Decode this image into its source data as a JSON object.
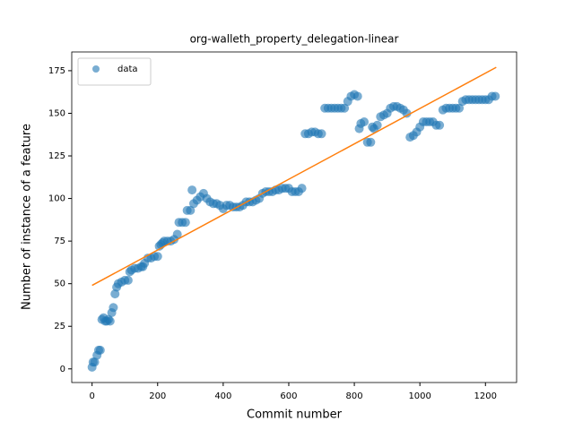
{
  "chart_data": {
    "type": "scatter",
    "title": "org-walleth_property_delegation-linear",
    "xlabel": "Commit number",
    "ylabel": "Number of instance of a feature",
    "xlim": [
      -62,
      1295
    ],
    "ylim": [
      -8,
      186
    ],
    "xticks": [
      0,
      200,
      400,
      600,
      800,
      1000,
      1200
    ],
    "yticks": [
      0,
      25,
      50,
      75,
      100,
      125,
      150,
      175
    ],
    "legend": "upper left",
    "series": [
      {
        "name": "data",
        "color": "#1f77b4",
        "kind": "points",
        "x": [
          0,
          3,
          8,
          15,
          20,
          25,
          30,
          35,
          40,
          45,
          50,
          55,
          60,
          65,
          70,
          75,
          80,
          90,
          100,
          110,
          115,
          120,
          130,
          140,
          150,
          155,
          160,
          170,
          180,
          190,
          200,
          205,
          210,
          215,
          220,
          230,
          240,
          250,
          260,
          265,
          275,
          285,
          290,
          300,
          305,
          310,
          320,
          330,
          340,
          350,
          360,
          370,
          380,
          390,
          400,
          410,
          420,
          430,
          440,
          450,
          460,
          470,
          480,
          490,
          500,
          510,
          520,
          530,
          540,
          550,
          560,
          570,
          580,
          590,
          600,
          610,
          620,
          630,
          640,
          650,
          660,
          670,
          680,
          690,
          700,
          710,
          720,
          730,
          740,
          750,
          760,
          770,
          780,
          790,
          800,
          810,
          815,
          820,
          830,
          840,
          850,
          855,
          860,
          870,
          880,
          890,
          900,
          910,
          920,
          930,
          940,
          950,
          960,
          970,
          980,
          990,
          1000,
          1010,
          1020,
          1030,
          1040,
          1050,
          1060,
          1070,
          1080,
          1090,
          1100,
          1110,
          1120,
          1130,
          1140,
          1150,
          1160,
          1170,
          1180,
          1190,
          1200,
          1210,
          1220,
          1230
        ],
        "values": [
          1,
          4,
          4,
          8,
          11,
          11,
          29,
          30,
          28,
          28,
          29,
          28,
          33,
          36,
          44,
          48,
          50,
          51,
          52,
          52,
          57,
          58,
          59,
          59,
          60,
          60,
          62,
          65,
          65,
          66,
          66,
          72,
          73,
          74,
          75,
          75,
          75,
          76,
          79,
          86,
          86,
          86,
          93,
          93,
          105,
          97,
          99,
          101,
          103,
          100,
          98,
          97,
          97,
          96,
          94,
          96,
          96,
          95,
          95,
          95,
          96,
          98,
          98,
          98,
          99,
          100,
          103,
          104,
          104,
          104,
          105,
          105,
          106,
          106,
          106,
          104,
          104,
          104,
          106,
          138,
          138,
          139,
          139,
          138,
          138,
          153,
          153,
          153,
          153,
          153,
          153,
          153,
          157,
          160,
          161,
          160,
          141,
          144,
          145,
          133,
          133,
          142,
          141,
          143,
          148,
          149,
          150,
          153,
          154,
          154,
          153,
          152,
          150,
          136,
          137,
          139,
          142,
          145,
          145,
          145,
          145,
          143,
          143,
          152,
          153,
          153,
          153,
          153,
          153,
          157,
          158,
          158,
          158,
          158,
          158,
          158,
          158,
          158,
          160,
          160
        ]
      },
      {
        "color": "#ff7f0e",
        "kind": "line",
        "x": [
          0,
          1233
        ],
        "values": [
          49,
          177
        ]
      }
    ]
  }
}
